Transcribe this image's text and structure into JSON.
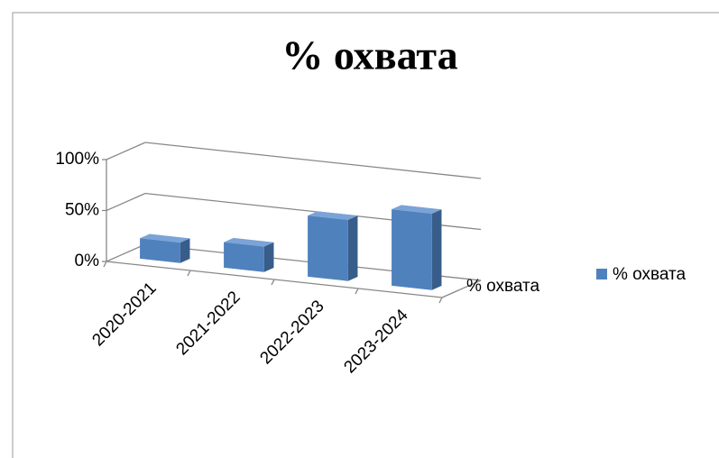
{
  "chart_data": {
    "type": "bar3d",
    "title": "% охвата",
    "categories": [
      "2020-2021",
      "2021-2022",
      "2022-2023",
      "2023-2024"
    ],
    "series": [
      {
        "name": "% охвата",
        "color": "#4f81bd",
        "values": [
          20,
          25,
          60,
          75
        ]
      }
    ],
    "ylim": [
      0,
      100
    ],
    "yticks": [
      {
        "value": 0,
        "label": "0%"
      },
      {
        "value": 50,
        "label": "50%"
      },
      {
        "value": 100,
        "label": "100%"
      }
    ],
    "grid": true,
    "legend": "right"
  }
}
